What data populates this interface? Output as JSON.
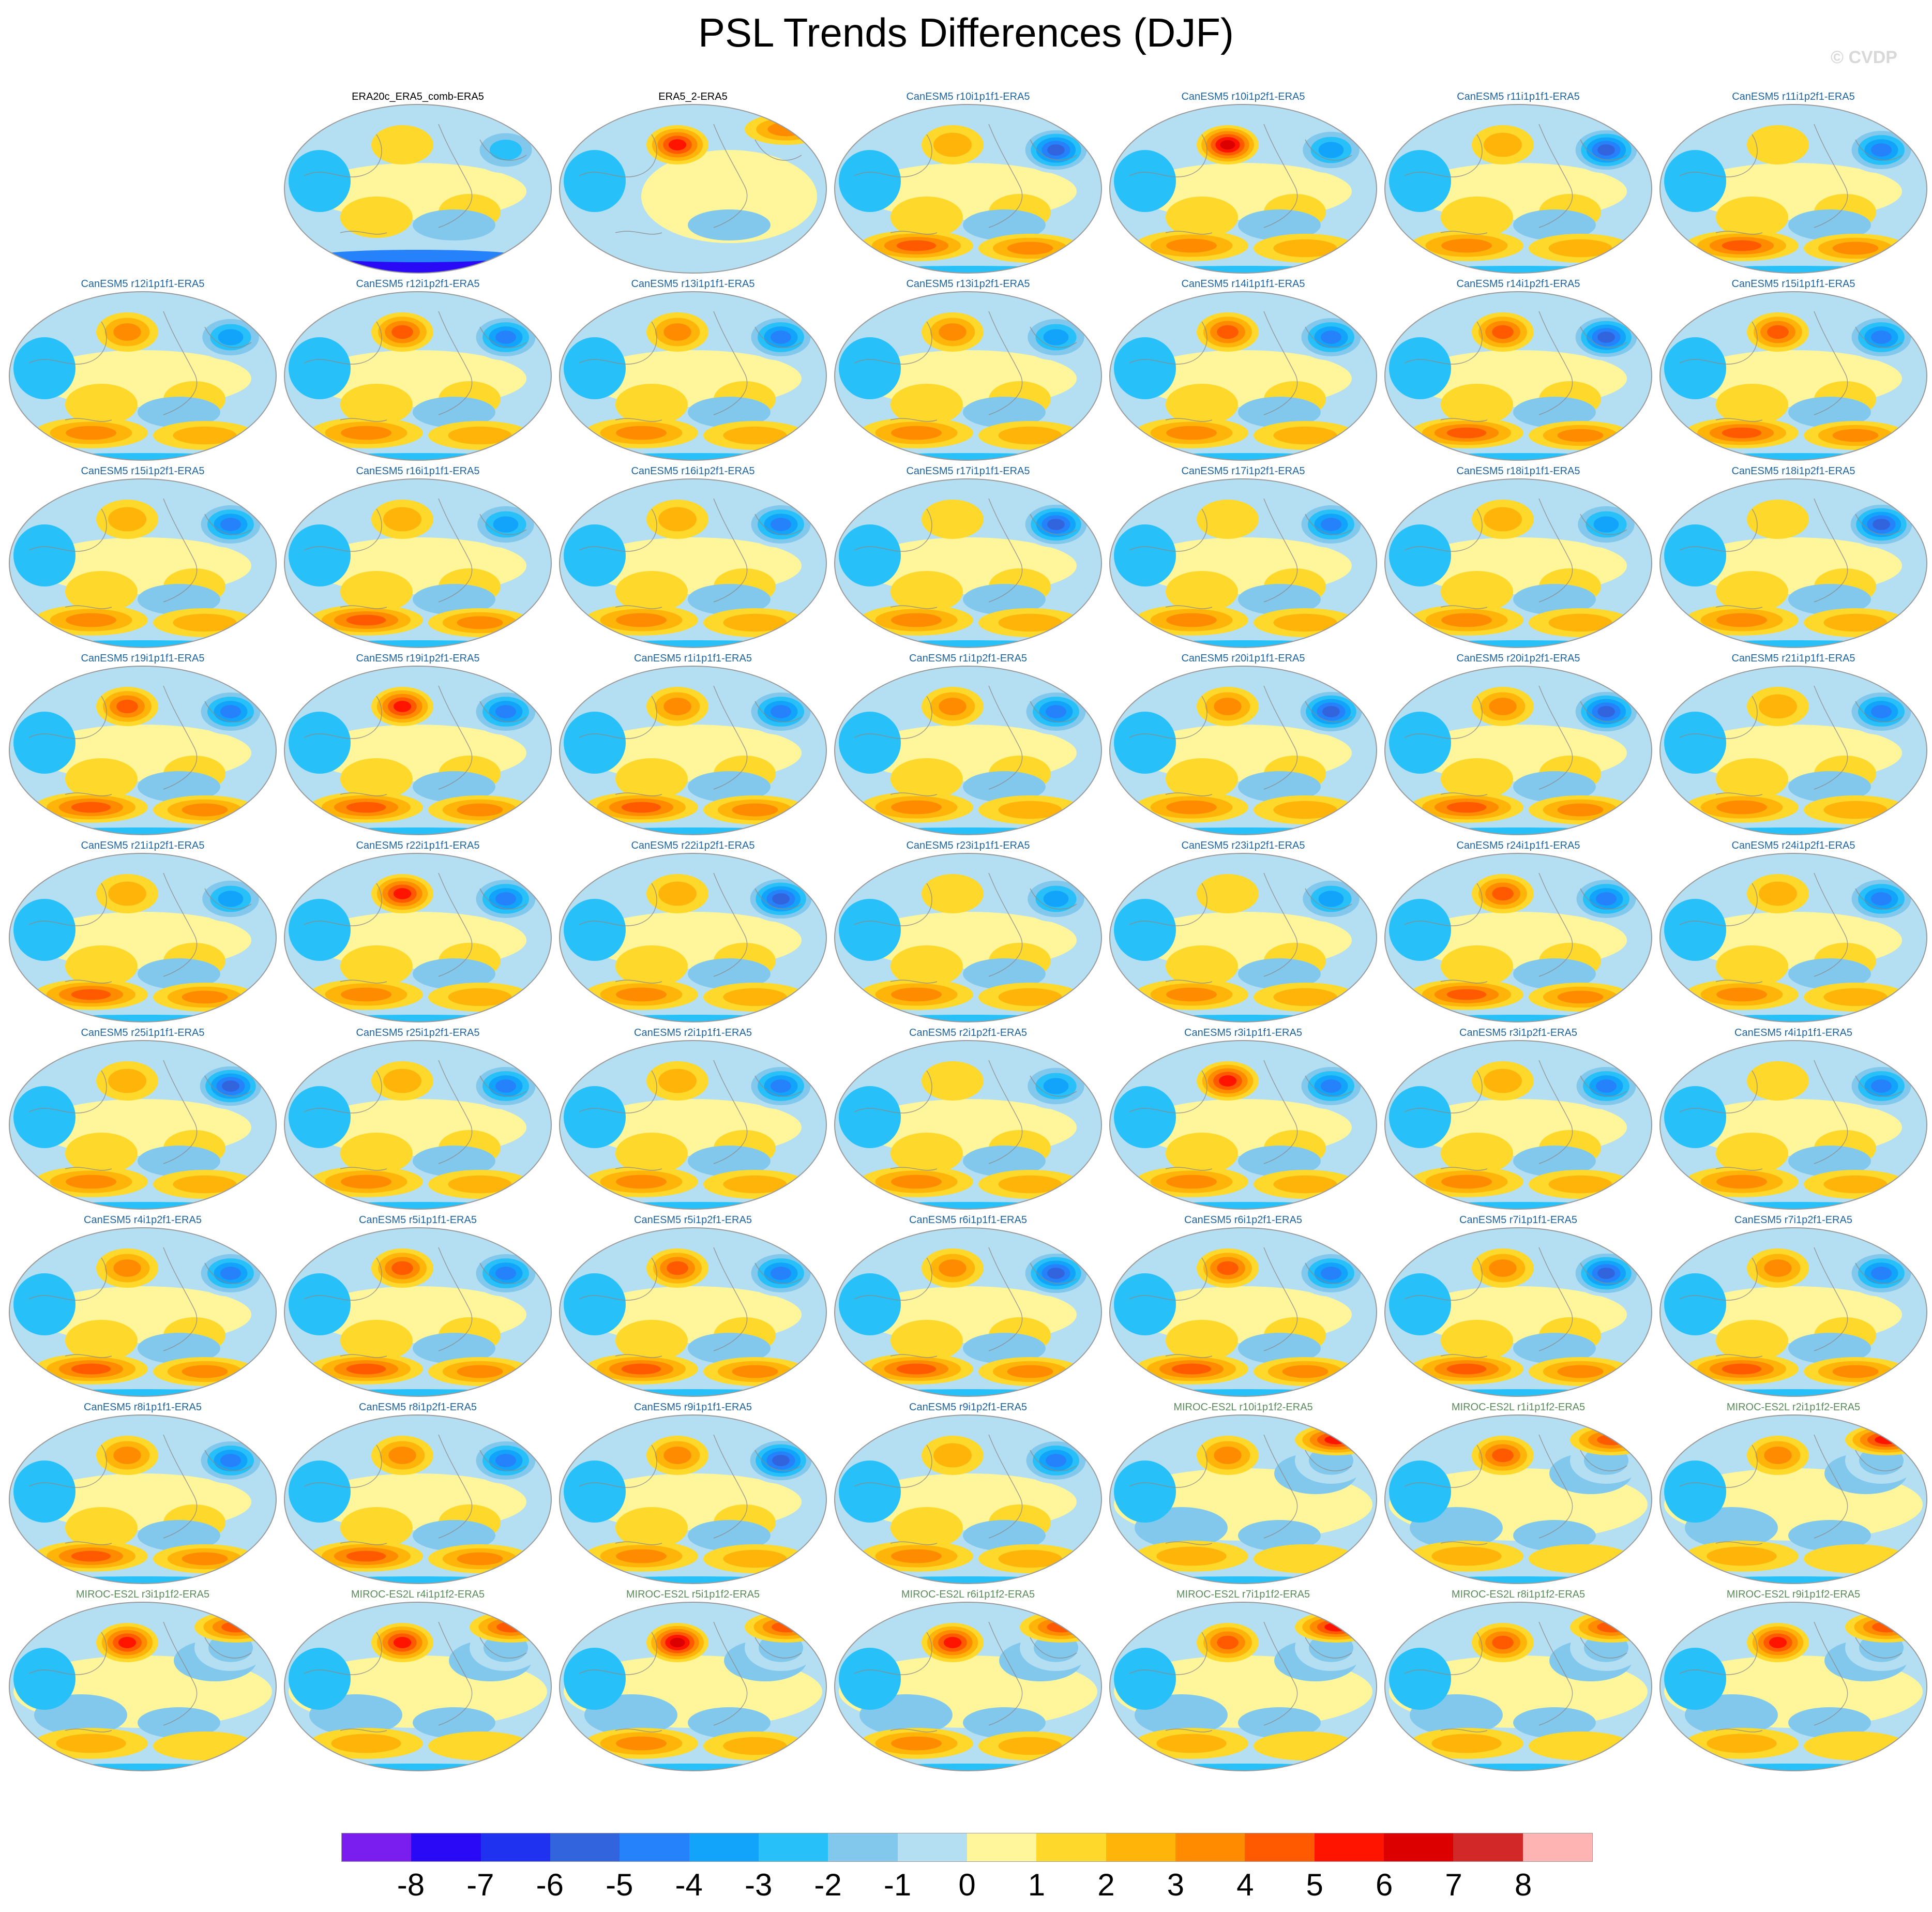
{
  "title": "PSL Trends Differences (DJF)",
  "watermark": "© CVDP",
  "chart_data": {
    "type": "heatmap",
    "title": "PSL Trends Differences (DJF)",
    "layout": "small multiples of global maps, 7 columns x 9 rows (first cell empty)",
    "panels": [
      {
        "label": "ERA20c_ERA5_comb-ERA5",
        "style": "obs",
        "features": {
          "south_polar_band": -8,
          "aleutian": 1,
          "north_atlantic": -3
        }
      },
      {
        "label": "ERA5_2-ERA5",
        "style": "obs",
        "features": {
          "aleutian": 5,
          "arctic": 3,
          "tropics": 0.5
        }
      },
      {
        "label": "CanESM5 r10i1p1f1-ERA5",
        "style": "canesm",
        "features": {
          "aleutian": 2,
          "north_atlantic": -6,
          "southern_ocean": 4
        }
      },
      {
        "label": "CanESM5 r10i1p2f1-ERA5",
        "style": "canesm",
        "features": {
          "aleutian": 6,
          "north_atlantic": -4,
          "southern_ocean": 3
        }
      },
      {
        "label": "CanESM5 r11i1p1f1-ERA5",
        "style": "canesm",
        "features": {
          "aleutian": 2,
          "north_atlantic": -6,
          "southern_ocean": 3
        }
      },
      {
        "label": "CanESM5 r11i1p2f1-ERA5",
        "style": "canesm",
        "features": {
          "aleutian": 1,
          "north_atlantic": -5,
          "southern_ocean": 4
        }
      },
      {
        "label": "CanESM5 r12i1p1f1-ERA5",
        "style": "canesm",
        "features": {
          "aleutian": 3,
          "north_atlantic": -4,
          "southern_ocean": 3
        }
      },
      {
        "label": "CanESM5 r12i1p2f1-ERA5",
        "style": "canesm",
        "features": {
          "aleutian": 4,
          "north_atlantic": -5,
          "southern_ocean": 3
        }
      },
      {
        "label": "CanESM5 r13i1p1f1-ERA5",
        "style": "canesm",
        "features": {
          "aleutian": 3,
          "north_atlantic": -5,
          "southern_ocean": 3
        }
      },
      {
        "label": "CanESM5 r13i1p2f1-ERA5",
        "style": "canesm",
        "features": {
          "aleutian": 3,
          "north_atlantic": -4,
          "southern_ocean": 3
        }
      },
      {
        "label": "CanESM5 r14i1p1f1-ERA5",
        "style": "canesm",
        "features": {
          "aleutian": 4,
          "north_atlantic": -5,
          "southern_ocean": 3
        }
      },
      {
        "label": "CanESM5 r14i1p2f1-ERA5",
        "style": "canesm",
        "features": {
          "aleutian": 4,
          "north_atlantic": -6,
          "southern_ocean": 4
        }
      },
      {
        "label": "CanESM5 r15i1p1f1-ERA5",
        "style": "canesm",
        "features": {
          "aleutian": 4,
          "north_atlantic": -5,
          "southern_ocean": 4
        }
      },
      {
        "label": "CanESM5 r15i1p2f1-ERA5",
        "style": "canesm",
        "features": {
          "aleutian": 2,
          "north_atlantic": -5,
          "southern_ocean": 3
        }
      },
      {
        "label": "CanESM5 r16i1p1f1-ERA5",
        "style": "canesm",
        "features": {
          "aleutian": 2,
          "north_atlantic": -4,
          "southern_ocean": 4
        }
      },
      {
        "label": "CanESM5 r16i1p2f1-ERA5",
        "style": "canesm",
        "features": {
          "aleutian": 2,
          "north_atlantic": -5,
          "southern_ocean": 3
        }
      },
      {
        "label": "CanESM5 r17i1p1f1-ERA5",
        "style": "canesm",
        "features": {
          "aleutian": 1,
          "north_atlantic": -6,
          "southern_ocean": 3
        }
      },
      {
        "label": "CanESM5 r17i1p2f1-ERA5",
        "style": "canesm",
        "features": {
          "aleutian": 1,
          "north_atlantic": -5,
          "southern_ocean": 3
        }
      },
      {
        "label": "CanESM5 r18i1p1f1-ERA5",
        "style": "canesm",
        "features": {
          "aleutian": 2,
          "north_atlantic": -4,
          "southern_ocean": 3
        }
      },
      {
        "label": "CanESM5 r18i1p2f1-ERA5",
        "style": "canesm",
        "features": {
          "aleutian": 1,
          "north_atlantic": -6,
          "southern_ocean": 3
        }
      },
      {
        "label": "CanESM5 r19i1p1f1-ERA5",
        "style": "canesm",
        "features": {
          "aleutian": 4,
          "north_atlantic": -5,
          "southern_ocean": 4
        }
      },
      {
        "label": "CanESM5 r19i1p2f1-ERA5",
        "style": "canesm",
        "features": {
          "aleutian": 5,
          "north_atlantic": -5,
          "southern_ocean": 4
        }
      },
      {
        "label": "CanESM5 r1i1p1f1-ERA5",
        "style": "canesm",
        "features": {
          "aleutian": 3,
          "north_atlantic": -5,
          "southern_ocean": 4
        }
      },
      {
        "label": "CanESM5 r1i1p2f1-ERA5",
        "style": "canesm",
        "features": {
          "aleutian": 3,
          "north_atlantic": -5,
          "southern_ocean": 3
        }
      },
      {
        "label": "CanESM5 r20i1p1f1-ERA5",
        "style": "canesm",
        "features": {
          "aleutian": 3,
          "north_atlantic": -6,
          "southern_ocean": 3
        }
      },
      {
        "label": "CanESM5 r20i1p2f1-ERA5",
        "style": "canesm",
        "features": {
          "aleutian": 3,
          "north_atlantic": -6,
          "southern_ocean": 4
        }
      },
      {
        "label": "CanESM5 r21i1p1f1-ERA5",
        "style": "canesm",
        "features": {
          "aleutian": 2,
          "north_atlantic": -5,
          "southern_ocean": 3
        }
      },
      {
        "label": "CanESM5 r21i1p2f1-ERA5",
        "style": "canesm",
        "features": {
          "aleutian": 2,
          "north_atlantic": -4,
          "southern_ocean": 4
        }
      },
      {
        "label": "CanESM5 r22i1p1f1-ERA5",
        "style": "canesm",
        "features": {
          "aleutian": 5,
          "north_atlantic": -5,
          "southern_ocean": 3
        }
      },
      {
        "label": "CanESM5 r22i1p2f1-ERA5",
        "style": "canesm",
        "features": {
          "aleutian": 2,
          "north_atlantic": -6,
          "southern_ocean": 3
        }
      },
      {
        "label": "CanESM5 r23i1p1f1-ERA5",
        "style": "canesm",
        "features": {
          "aleutian": 1,
          "north_atlantic": -4,
          "southern_ocean": 3
        }
      },
      {
        "label": "CanESM5 r23i1p2f1-ERA5",
        "style": "canesm",
        "features": {
          "aleutian": 1,
          "north_atlantic": -4,
          "southern_ocean": 3
        }
      },
      {
        "label": "CanESM5 r24i1p1f1-ERA5",
        "style": "canesm",
        "features": {
          "aleutian": 4,
          "north_atlantic": -5,
          "southern_ocean": 4
        }
      },
      {
        "label": "CanESM5 r24i1p2f1-ERA5",
        "style": "canesm",
        "features": {
          "aleutian": 2,
          "north_atlantic": -5,
          "southern_ocean": 3
        }
      },
      {
        "label": "CanESM5 r25i1p1f1-ERA5",
        "style": "canesm",
        "features": {
          "aleutian": 2,
          "north_atlantic": -6,
          "southern_ocean": 3
        }
      },
      {
        "label": "CanESM5 r25i1p2f1-ERA5",
        "style": "canesm",
        "features": {
          "aleutian": 2,
          "north_atlantic": -5,
          "southern_ocean": 3
        }
      },
      {
        "label": "CanESM5 r2i1p1f1-ERA5",
        "style": "canesm",
        "features": {
          "aleutian": 2,
          "north_atlantic": -5,
          "southern_ocean": 3
        }
      },
      {
        "label": "CanESM5 r2i1p2f1-ERA5",
        "style": "canesm",
        "features": {
          "aleutian": 1,
          "north_atlantic": -4,
          "southern_ocean": 3
        }
      },
      {
        "label": "CanESM5 r3i1p1f1-ERA5",
        "style": "canesm",
        "features": {
          "aleutian": 5,
          "north_atlantic": -5,
          "southern_ocean": 3
        }
      },
      {
        "label": "CanESM5 r3i1p2f1-ERA5",
        "style": "canesm",
        "features": {
          "aleutian": 2,
          "north_atlantic": -5,
          "southern_ocean": 3
        }
      },
      {
        "label": "CanESM5 r4i1p1f1-ERA5",
        "style": "canesm",
        "features": {
          "aleutian": 1,
          "north_atlantic": -5,
          "southern_ocean": 3
        }
      },
      {
        "label": "CanESM5 r4i1p2f1-ERA5",
        "style": "canesm",
        "features": {
          "aleutian": 3,
          "north_atlantic": -5,
          "southern_ocean": 4
        }
      },
      {
        "label": "CanESM5 r5i1p1f1-ERA5",
        "style": "canesm",
        "features": {
          "aleutian": 4,
          "north_atlantic": -5,
          "southern_ocean": 4
        }
      },
      {
        "label": "CanESM5 r5i1p2f1-ERA5",
        "style": "canesm",
        "features": {
          "aleutian": 4,
          "north_atlantic": -5,
          "southern_ocean": 4
        }
      },
      {
        "label": "CanESM5 r6i1p1f1-ERA5",
        "style": "canesm",
        "features": {
          "aleutian": 3,
          "north_atlantic": -6,
          "southern_ocean": 4
        }
      },
      {
        "label": "CanESM5 r6i1p2f1-ERA5",
        "style": "canesm",
        "features": {
          "aleutian": 4,
          "north_atlantic": -5,
          "southern_ocean": 4
        }
      },
      {
        "label": "CanESM5 r7i1p1f1-ERA5",
        "style": "canesm",
        "features": {
          "aleutian": 3,
          "north_atlantic": -6,
          "southern_ocean": 4
        }
      },
      {
        "label": "CanESM5 r7i1p2f1-ERA5",
        "style": "canesm",
        "features": {
          "aleutian": 3,
          "north_atlantic": -5,
          "southern_ocean": 4
        }
      },
      {
        "label": "CanESM5 r8i1p1f1-ERA5",
        "style": "canesm",
        "features": {
          "aleutian": 3,
          "north_atlantic": -5,
          "southern_ocean": 4
        }
      },
      {
        "label": "CanESM5 r8i1p2f1-ERA5",
        "style": "canesm",
        "features": {
          "aleutian": 3,
          "north_atlantic": -5,
          "southern_ocean": 4
        }
      },
      {
        "label": "CanESM5 r9i1p1f1-ERA5",
        "style": "canesm",
        "features": {
          "aleutian": 3,
          "north_atlantic": -6,
          "southern_ocean": 3
        }
      },
      {
        "label": "CanESM5 r9i1p2f1-ERA5",
        "style": "canesm",
        "features": {
          "aleutian": 2,
          "north_atlantic": -5,
          "southern_ocean": 3
        }
      },
      {
        "label": "MIROC-ES2L r10i1p1f2-ERA5",
        "style": "miroc",
        "features": {
          "aleutian": 3,
          "arctic": 5,
          "north_atlantic": -2,
          "southern_ocean": 2
        }
      },
      {
        "label": "MIROC-ES2L r1i1p1f2-ERA5",
        "style": "miroc",
        "features": {
          "aleutian": 4,
          "arctic": 4,
          "north_atlantic": -2,
          "southern_ocean": 2
        }
      },
      {
        "label": "MIROC-ES2L r2i1p1f2-ERA5",
        "style": "miroc",
        "features": {
          "aleutian": 3,
          "arctic": 5,
          "north_atlantic": -2,
          "southern_ocean": 2
        }
      },
      {
        "label": "MIROC-ES2L r3i1p1f2-ERA5",
        "style": "miroc",
        "features": {
          "aleutian": 5,
          "arctic": 4,
          "north_atlantic": -2,
          "southern_ocean": 2
        }
      },
      {
        "label": "MIROC-ES2L r4i1p1f2-ERA5",
        "style": "miroc",
        "features": {
          "aleutian": 5,
          "arctic": 4,
          "north_atlantic": -2,
          "southern_ocean": 2
        }
      },
      {
        "label": "MIROC-ES2L r5i1p1f2-ERA5",
        "style": "miroc",
        "features": {
          "aleutian": 6,
          "arctic": 4,
          "north_atlantic": -2,
          "southern_ocean": 3
        }
      },
      {
        "label": "MIROC-ES2L r6i1p1f2-ERA5",
        "style": "miroc",
        "features": {
          "aleutian": 5,
          "arctic": 4,
          "north_atlantic": -2,
          "southern_ocean": 3
        }
      },
      {
        "label": "MIROC-ES2L r7i1p1f2-ERA5",
        "style": "miroc",
        "features": {
          "aleutian": 4,
          "arctic": 5,
          "north_atlantic": -2,
          "southern_ocean": 2
        }
      },
      {
        "label": "MIROC-ES2L r8i1p1f2-ERA5",
        "style": "miroc",
        "features": {
          "aleutian": 4,
          "arctic": 4,
          "north_atlantic": -2,
          "southern_ocean": 2
        }
      },
      {
        "label": "MIROC-ES2L r9i1p1f2-ERA5",
        "style": "miroc",
        "features": {
          "aleutian": 5,
          "arctic": 4,
          "north_atlantic": -2,
          "southern_ocean": 2
        }
      }
    ],
    "colorbar": {
      "labels": [
        "-8",
        "-7",
        "-6",
        "-5",
        "-4",
        "-3",
        "-2",
        "-1",
        "0",
        "1",
        "2",
        "3",
        "4",
        "5",
        "6",
        "7",
        "8"
      ],
      "colors": [
        "#7a1ef0",
        "#2a0af6",
        "#1e32f0",
        "#3264de",
        "#2682fa",
        "#12a4fa",
        "#28c0f8",
        "#82c8ec",
        "#b4dff2",
        "#fff59a",
        "#ffd82c",
        "#ffb40a",
        "#ff8c00",
        "#ff5a00",
        "#ff1400",
        "#dc0000",
        "#d22828",
        "#ffb4b4"
      ]
    },
    "title_colors": {
      "obs": "#000000",
      "canesm": "#1e64a0",
      "miroc": "#5a8c5a"
    }
  }
}
